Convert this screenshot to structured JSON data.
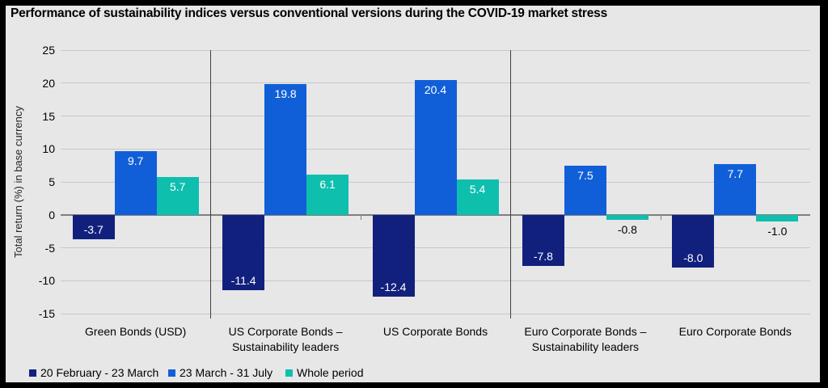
{
  "colors": {
    "background": "#E7E7E7",
    "frame": "#000000",
    "grid": "#C7C7C7",
    "zero_line": "#7F7F7F",
    "separator": "#3F3F3F",
    "navy": "#12207D",
    "blue": "#115FD8",
    "teal": "#0FBFAE",
    "bar_label_inside": "#FFFFFF",
    "bar_label_outside": "#000000"
  },
  "chart_data": {
    "type": "bar",
    "title": "Performance of sustainability indices versus conventional versions during the COVID-19 market stress",
    "xlabel": "",
    "ylabel": "Total return (%) in base currency",
    "ylim": [
      -15,
      25
    ],
    "ytick_step": 5,
    "yticks": [
      25,
      20,
      15,
      10,
      5,
      0,
      -5,
      -10,
      -15
    ],
    "grid": true,
    "legend_position": "bottom-left",
    "categories": [
      "Green Bonds (USD)",
      "US Corporate Bonds –\nSustainability leaders",
      "US Corporate Bonds",
      "Euro Corporate Bonds –\nSustainability leaders",
      "Euro Corporate Bonds"
    ],
    "series": [
      {
        "name": "20 February - 23 March",
        "color": "#12207D",
        "values": [
          -3.7,
          -11.4,
          -12.4,
          -7.8,
          -8.0
        ],
        "labels": [
          "-3.7",
          "-11.4",
          "-12.4",
          "-7.8",
          "-8.0"
        ]
      },
      {
        "name": "23 March - 31 July",
        "color": "#115FD8",
        "values": [
          9.7,
          19.8,
          20.4,
          7.5,
          7.7
        ],
        "labels": [
          "9.7",
          "19.8",
          "20.4",
          "7.5",
          "7.7"
        ]
      },
      {
        "name": "Whole period",
        "color": "#0FBFAE",
        "values": [
          5.7,
          6.1,
          5.4,
          -0.8,
          -1.0
        ],
        "labels": [
          "5.7",
          "6.1",
          "5.4",
          "-0.8",
          "-1.0"
        ]
      }
    ],
    "separators_after_category_index": [
      0,
      2
    ]
  }
}
